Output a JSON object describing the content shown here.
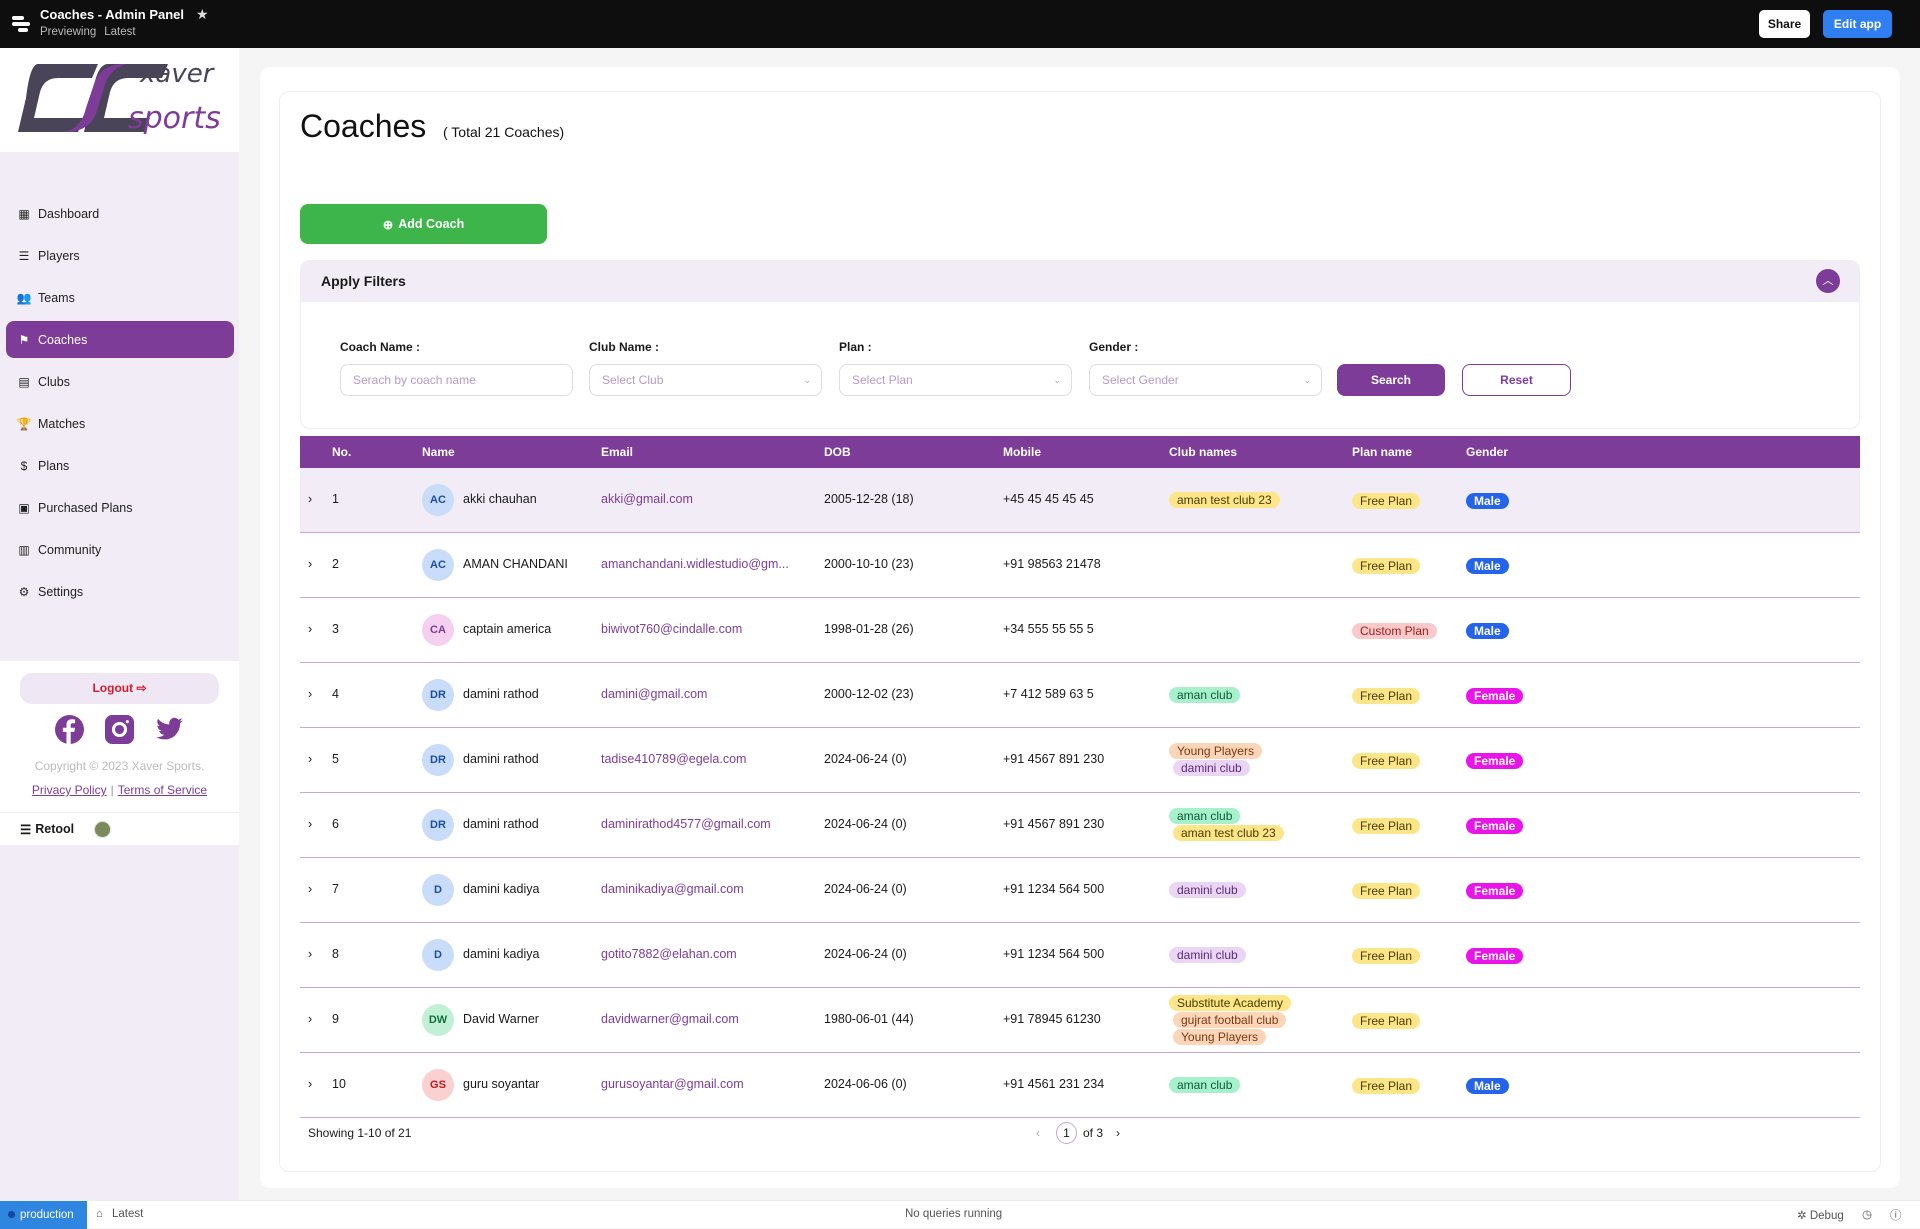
{
  "topbar": {
    "title": "Coaches - Admin Panel",
    "status": "Previewing",
    "version": "Latest",
    "share": "Share",
    "edit": "Edit app"
  },
  "sidebar": {
    "logo_text": "xaver sports",
    "items": [
      {
        "label": "Dashboard",
        "icon": "dashboard-icon",
        "glyph": "▦"
      },
      {
        "label": "Players",
        "icon": "list-icon",
        "glyph": "☰"
      },
      {
        "label": "Teams",
        "icon": "users-icon",
        "glyph": "👥"
      },
      {
        "label": "Coaches",
        "icon": "coach-icon",
        "glyph": "⚑",
        "active": true
      },
      {
        "label": "Clubs",
        "icon": "clubs-icon",
        "glyph": "▤"
      },
      {
        "label": "Matches",
        "icon": "trophy-icon",
        "glyph": "🏆"
      },
      {
        "label": "Plans",
        "icon": "plans-icon",
        "glyph": "$"
      },
      {
        "label": "Purchased Plans",
        "icon": "purchased-icon",
        "glyph": "▣"
      },
      {
        "label": "Community",
        "icon": "community-icon",
        "glyph": "▥"
      },
      {
        "label": "Settings",
        "icon": "gear-icon",
        "glyph": "⚙"
      }
    ],
    "logout": "Logout",
    "copyright": "Copyright © 2023 Xaver Sports.",
    "privacy": "Privacy Policy",
    "terms": "Terms of Service",
    "retool": "Retool"
  },
  "page": {
    "title": "Coaches",
    "total": "( Total 21 Coaches)",
    "add": "Add Coach"
  },
  "filters": {
    "title": "Apply Filters",
    "coach_label": "Coach Name :",
    "coach_ph": "Serach by coach name",
    "club_label": "Club Name :",
    "club_ph": "Select Club",
    "plan_label": "Plan :",
    "plan_ph": "Select Plan",
    "gender_label": "Gender :",
    "gender_ph": "Select Gender",
    "search": "Search",
    "reset": "Reset"
  },
  "table": {
    "headers": [
      "No.",
      "Name",
      "Email",
      "DOB",
      "Mobile",
      "Club names",
      "Plan name",
      "Gender"
    ],
    "rows": [
      {
        "no": "1",
        "initials": "AC",
        "av": "blue",
        "name": "akki chauhan",
        "email": "akki@gmail.com",
        "dob": "2005-12-28 (18)",
        "mobile": "+45 45 45 45 45",
        "clubs": [
          [
            "aman test club 23",
            "yellow"
          ]
        ],
        "plan": [
          "Free Plan",
          "yellow"
        ],
        "gender": "Male"
      },
      {
        "no": "2",
        "initials": "AC",
        "av": "blue",
        "name": "AMAN CHANDANI",
        "email": "amanchandani.widlestudio@gm...",
        "dob": "2000-10-10 (23)",
        "mobile": "+91 98563 21478",
        "clubs": [],
        "plan": [
          "Free Plan",
          "yellow"
        ],
        "gender": "Male"
      },
      {
        "no": "3",
        "initials": "CA",
        "av": "pink",
        "name": "captain america",
        "email": "biwivot760@cindalle.com",
        "dob": "1998-01-28 (26)",
        "mobile": "+34 555 55 55 5",
        "clubs": [],
        "plan": [
          "Custom Plan",
          "red"
        ],
        "gender": "Male"
      },
      {
        "no": "4",
        "initials": "DR",
        "av": "blue",
        "name": "damini rathod",
        "email": "damini@gmail.com",
        "dob": "2000-12-02 (23)",
        "mobile": "+7 412 589 63 5",
        "clubs": [
          [
            "aman club",
            "green"
          ]
        ],
        "plan": [
          "Free Plan",
          "yellow"
        ],
        "gender": "Female"
      },
      {
        "no": "5",
        "initials": "DR",
        "av": "blue",
        "name": "damini rathod",
        "email": "tadise410789@egela.com",
        "dob": "2024-06-24 (0)",
        "mobile": "+91 4567 891 230",
        "clubs": [
          [
            "Young Players",
            "peach"
          ],
          [
            "damini club",
            "lavender"
          ]
        ],
        "plan": [
          "Free Plan",
          "yellow"
        ],
        "gender": "Female"
      },
      {
        "no": "6",
        "initials": "DR",
        "av": "blue",
        "name": "damini rathod",
        "email": "daminirathod4577@gmail.com",
        "dob": "2024-06-24 (0)",
        "mobile": "+91 4567 891 230",
        "clubs": [
          [
            "aman club",
            "green"
          ],
          [
            "aman test club 23",
            "yellow"
          ]
        ],
        "plan": [
          "Free Plan",
          "yellow"
        ],
        "gender": "Female"
      },
      {
        "no": "7",
        "initials": "D",
        "av": "blue",
        "name": "damini kadiya",
        "email": "daminikadiya@gmail.com",
        "dob": "2024-06-24 (0)",
        "mobile": "+91 1234 564 500",
        "clubs": [
          [
            "damini club",
            "lavender"
          ]
        ],
        "plan": [
          "Free Plan",
          "yellow"
        ],
        "gender": "Female"
      },
      {
        "no": "8",
        "initials": "D",
        "av": "blue",
        "name": "damini kadiya",
        "email": "gotito7882@elahan.com",
        "dob": "2024-06-24 (0)",
        "mobile": "+91 1234 564 500",
        "clubs": [
          [
            "damini club",
            "lavender"
          ]
        ],
        "plan": [
          "Free Plan",
          "yellow"
        ],
        "gender": "Female"
      },
      {
        "no": "9",
        "initials": "DW",
        "av": "green",
        "name": "David Warner",
        "email": "davidwarner@gmail.com",
        "dob": "1980-06-01 (44)",
        "mobile": "+91 78945 61230",
        "clubs": [
          [
            "Substitute Academy",
            "yellow"
          ],
          [
            "gujrat football club",
            "peach"
          ],
          [
            "Young Players",
            "peach"
          ]
        ],
        "plan": [
          "Free Plan",
          "yellow"
        ],
        "gender": ""
      },
      {
        "no": "10",
        "initials": "GS",
        "av": "red",
        "name": "guru soyantar",
        "email": "gurusoyantar@gmail.com",
        "dob": "2024-06-06 (0)",
        "mobile": "+91 4561 231 234",
        "clubs": [
          [
            "aman club",
            "green"
          ]
        ],
        "plan": [
          "Free Plan",
          "yellow"
        ],
        "gender": "Male"
      }
    ]
  },
  "pagination": {
    "showing": "Showing 1-10 of 21",
    "page": "1",
    "of": "of 3"
  },
  "footer": {
    "env": "production",
    "version": "Latest",
    "status": "No queries running",
    "debug": "Debug"
  },
  "colors": {
    "accent": "#7d3c98",
    "green": "#3db54a",
    "male": "#2563eb",
    "female": "#e814e8"
  }
}
